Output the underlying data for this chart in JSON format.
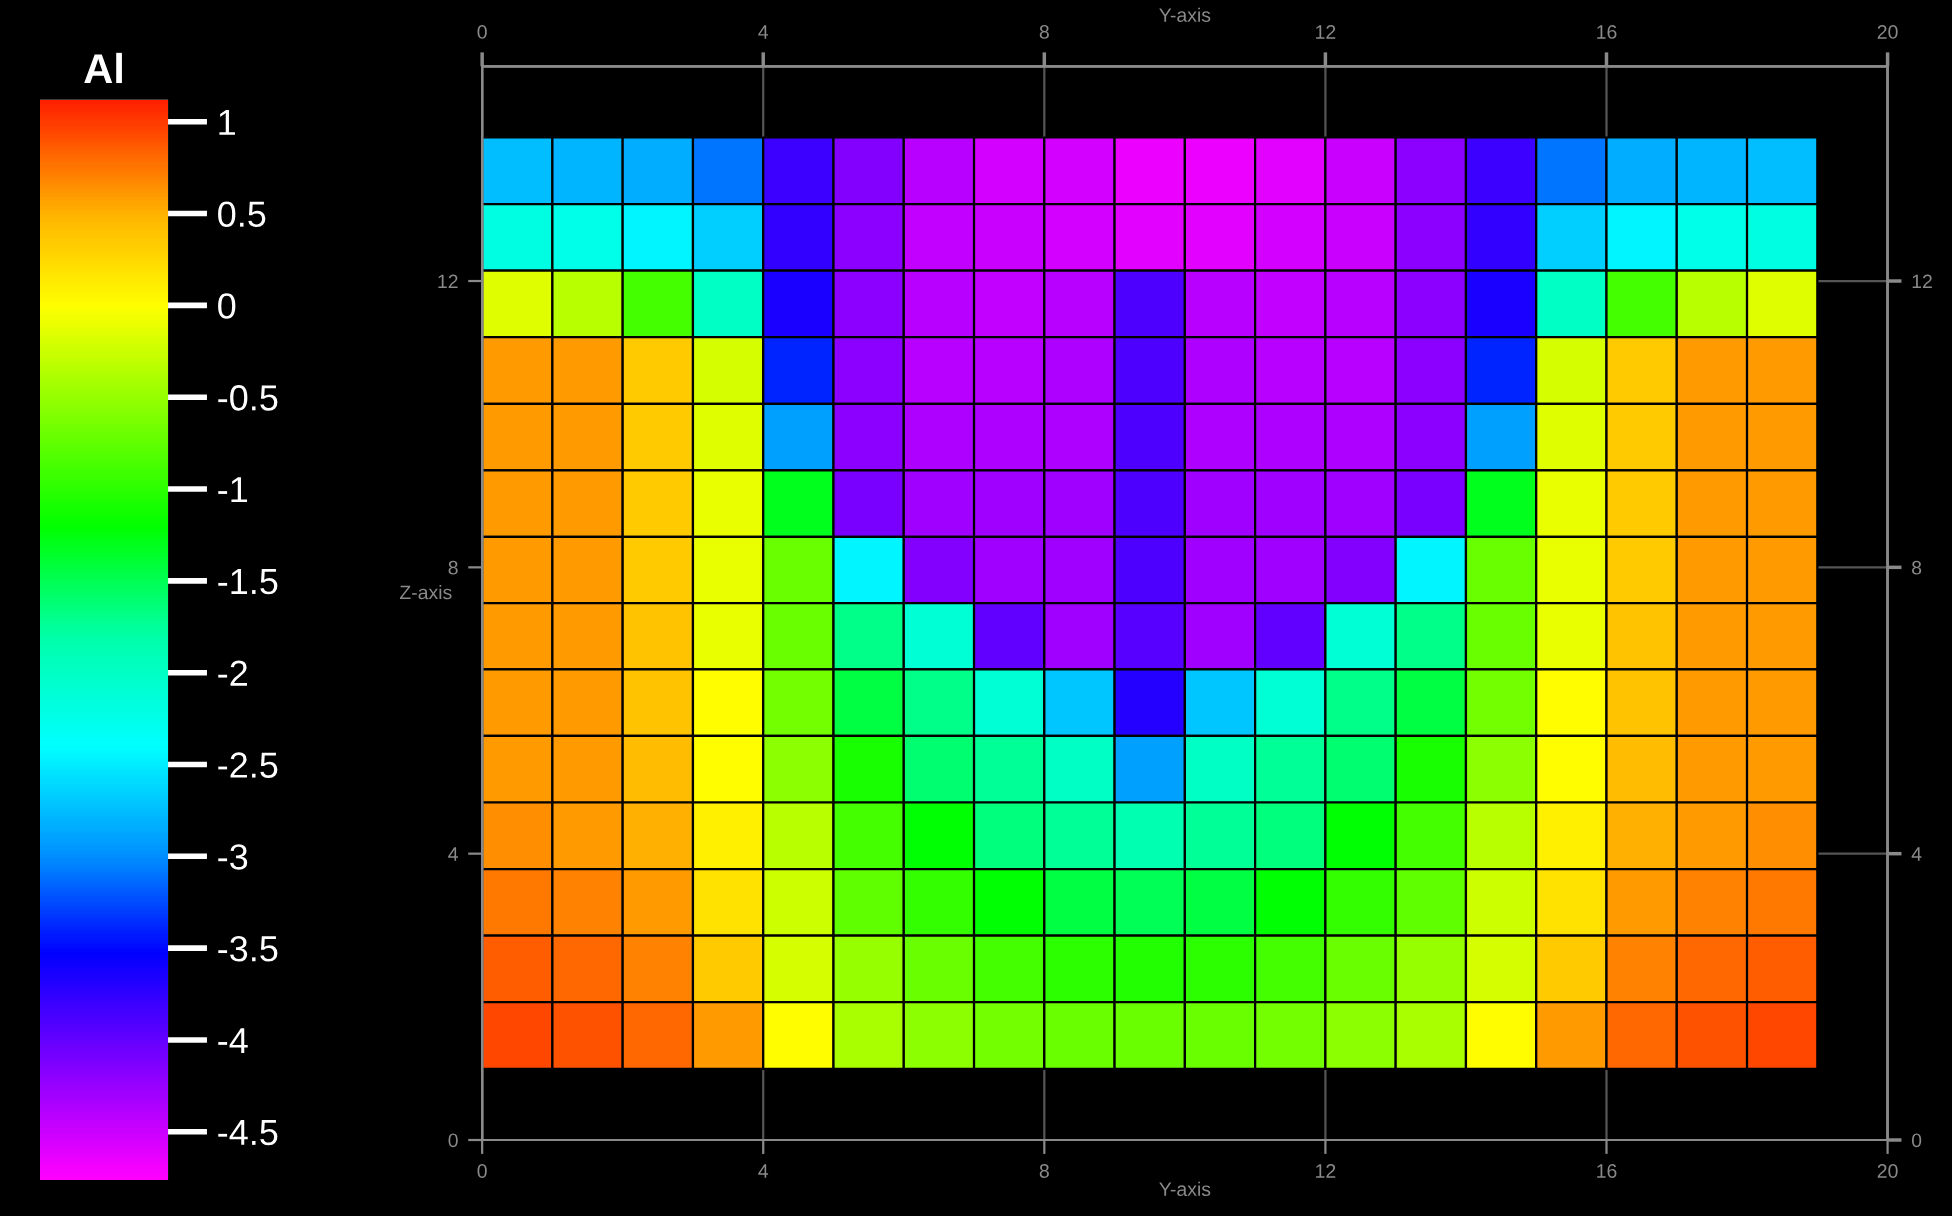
{
  "chart_data": {
    "type": "heatmap",
    "xlabel": "Y-axis",
    "x2label": "Y-axis",
    "ylabel": "Z-axis",
    "clabel": "Al",
    "x": [
      0.5,
      1.5,
      2.5,
      3.5,
      4.5,
      5.5,
      6.5,
      7.5,
      8.5,
      9.5,
      10.5,
      11.5,
      12.5,
      13.5,
      14.5,
      15.5,
      16.5,
      17.5,
      18.5
    ],
    "y": [
      13.54,
      12.61,
      11.68,
      10.75,
      9.82,
      8.89,
      7.96,
      7.04,
      6.11,
      5.18,
      4.25,
      3.32,
      2.39,
      1.46
    ],
    "cells": [
      [
        -2.75,
        -2.8,
        -2.85,
        -3.1,
        -3.8,
        -4.15,
        -4.4,
        -4.55,
        -4.55,
        -4.65,
        -4.65,
        -4.6,
        -4.5,
        -4.2,
        -3.8,
        -3.1,
        -2.85,
        -2.8,
        -2.75
      ],
      [
        -2.2,
        -2.25,
        -2.45,
        -2.65,
        -3.75,
        -4.2,
        -4.45,
        -4.5,
        -4.55,
        -4.6,
        -4.6,
        -4.55,
        -4.5,
        -4.2,
        -3.75,
        -2.65,
        -2.45,
        -2.25,
        -2.2
      ],
      [
        -0.15,
        -0.35,
        -0.9,
        -2.0,
        -3.65,
        -4.2,
        -4.4,
        -4.45,
        -4.4,
        -3.9,
        -4.4,
        -4.45,
        -4.4,
        -4.2,
        -3.65,
        -2.0,
        -0.9,
        -0.35,
        -0.15
      ],
      [
        0.6,
        0.6,
        0.35,
        -0.2,
        -3.4,
        -4.2,
        -4.4,
        -4.4,
        -4.35,
        -3.9,
        -4.35,
        -4.4,
        -4.4,
        -4.2,
        -3.4,
        -0.2,
        0.35,
        0.6,
        0.6
      ],
      [
        0.6,
        0.6,
        0.35,
        -0.15,
        -2.9,
        -4.2,
        -4.35,
        -4.35,
        -4.35,
        -3.9,
        -4.35,
        -4.35,
        -4.35,
        -4.2,
        -2.9,
        -0.15,
        0.35,
        0.6,
        0.6
      ],
      [
        0.6,
        0.6,
        0.35,
        -0.1,
        -1.3,
        -4.1,
        -4.3,
        -4.3,
        -4.3,
        -3.9,
        -4.3,
        -4.3,
        -4.3,
        -4.1,
        -1.3,
        -0.1,
        0.35,
        0.6,
        0.6
      ],
      [
        0.6,
        0.6,
        0.35,
        -0.1,
        -0.7,
        -2.45,
        -4.15,
        -4.3,
        -4.3,
        -3.9,
        -4.3,
        -4.3,
        -4.15,
        -2.45,
        -0.7,
        -0.1,
        0.35,
        0.6,
        0.6
      ],
      [
        0.6,
        0.6,
        0.4,
        -0.1,
        -0.7,
        -1.7,
        -2.1,
        -4.0,
        -4.3,
        -3.95,
        -4.3,
        -4.0,
        -2.1,
        -1.7,
        -0.7,
        -0.1,
        0.4,
        0.6,
        0.6
      ],
      [
        0.6,
        0.6,
        0.4,
        0.0,
        -0.65,
        -1.45,
        -1.7,
        -2.1,
        -2.7,
        -3.7,
        -2.7,
        -2.1,
        -1.7,
        -1.45,
        -0.65,
        0.0,
        0.4,
        0.6,
        0.6
      ],
      [
        0.6,
        0.6,
        0.45,
        0.0,
        -0.55,
        -1.1,
        -1.6,
        -1.75,
        -2.0,
        -2.9,
        -2.0,
        -1.75,
        -1.6,
        -1.1,
        -0.55,
        0.0,
        0.45,
        0.6,
        0.6
      ],
      [
        0.65,
        0.6,
        0.5,
        0.1,
        -0.35,
        -0.9,
        -1.2,
        -1.65,
        -1.75,
        -1.85,
        -1.75,
        -1.65,
        -1.2,
        -0.9,
        -0.35,
        0.1,
        0.5,
        0.6,
        0.65
      ],
      [
        0.75,
        0.7,
        0.6,
        0.2,
        -0.25,
        -0.75,
        -0.95,
        -1.2,
        -1.45,
        -1.5,
        -1.45,
        -1.2,
        -0.95,
        -0.75,
        -0.25,
        0.2,
        0.6,
        0.7,
        0.75
      ],
      [
        0.85,
        0.8,
        0.7,
        0.35,
        -0.2,
        -0.5,
        -0.7,
        -0.9,
        -1.0,
        -1.05,
        -1.0,
        -0.9,
        -0.7,
        -0.5,
        -0.2,
        0.35,
        0.7,
        0.8,
        0.85
      ],
      [
        0.95,
        0.9,
        0.8,
        0.6,
        0.0,
        -0.4,
        -0.55,
        -0.65,
        -0.7,
        -0.7,
        -0.7,
        -0.65,
        -0.55,
        -0.4,
        0.0,
        0.6,
        0.8,
        0.9,
        0.95
      ]
    ],
    "clim": [
      -4.76,
      1.12
    ],
    "cticks": [
      1,
      0.5,
      0,
      -0.5,
      -1,
      -1.5,
      -2,
      -2.5,
      -3,
      -3.5,
      -4,
      -4.5
    ],
    "xlim": [
      0,
      20
    ],
    "xticks": [
      0,
      4,
      8,
      12,
      16,
      20
    ],
    "x2lim": [
      0,
      20
    ],
    "x2ticks": [
      0,
      4,
      8,
      12,
      16,
      20
    ],
    "ylim": [
      0,
      15
    ],
    "yticks": [
      0,
      4,
      8,
      12
    ],
    "y2lim": [
      0,
      15
    ],
    "y2ticks": [
      0,
      4,
      8,
      12
    ],
    "grid": true
  }
}
